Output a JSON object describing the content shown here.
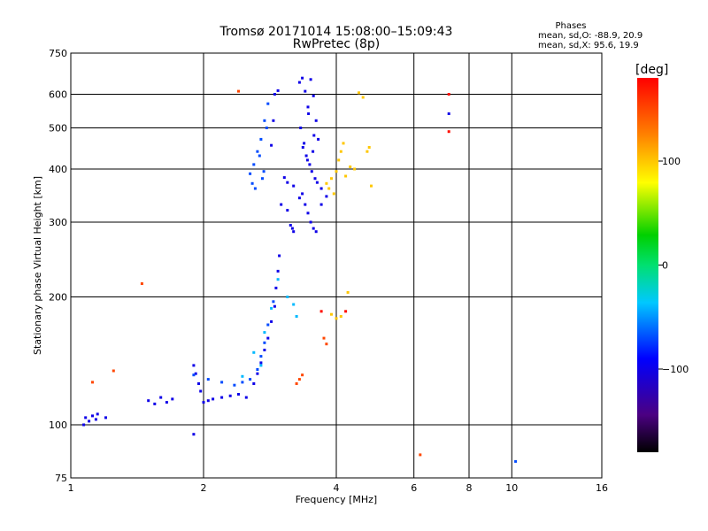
{
  "chart_data": {
    "type": "scatter",
    "title": "Tromsø 20171014 15:08:00–15:09:43",
    "subtitle": "RwPretec (8p)",
    "xlabel": "Frequency [MHz]",
    "ylabel": "Stationary phase Virtual Height [km]",
    "x_scale": "log",
    "y_scale": "log",
    "xlim": [
      1,
      16
    ],
    "ylim": [
      75,
      750
    ],
    "x_ticks": [
      1,
      2,
      4,
      6,
      8,
      10,
      16
    ],
    "x_tick_labels": [
      "1",
      "2",
      "4",
      "6",
      "8",
      "10",
      "16"
    ],
    "y_ticks": [
      75,
      100,
      200,
      300,
      400,
      500,
      600,
      750
    ],
    "y_tick_labels": [
      "75",
      "100",
      "200",
      "300",
      "400",
      "500",
      "600",
      "750"
    ],
    "grid": true,
    "stats": {
      "heading": "Phases",
      "line_o": "mean, sd,O: -88.9, 20.9",
      "line_x": "mean, sd,X:  95.6, 19.9"
    },
    "colorbar": {
      "label": "[deg]",
      "range": [
        -180,
        180
      ],
      "ticks": [
        100,
        0,
        -100
      ],
      "tick_labels": [
        "100",
        "0",
        "−100"
      ]
    },
    "series": [
      {
        "phase_deg": -100,
        "points": [
          [
            1.08,
            104
          ],
          [
            1.1,
            102
          ],
          [
            1.12,
            105
          ],
          [
            1.14,
            103
          ],
          [
            1.07,
            100
          ],
          [
            1.15,
            106
          ],
          [
            1.2,
            104
          ],
          [
            1.5,
            114
          ],
          [
            1.55,
            112
          ],
          [
            1.6,
            116
          ],
          [
            1.65,
            113
          ],
          [
            1.7,
            115
          ],
          [
            1.9,
            138
          ],
          [
            1.92,
            132
          ],
          [
            1.95,
            125
          ],
          [
            1.97,
            120
          ],
          [
            1.9,
            95
          ],
          [
            2.0,
            113
          ],
          [
            2.05,
            114
          ],
          [
            2.1,
            115
          ],
          [
            2.2,
            116
          ],
          [
            2.3,
            117
          ],
          [
            2.4,
            118
          ],
          [
            2.5,
            116
          ],
          [
            2.6,
            125
          ],
          [
            2.65,
            132
          ],
          [
            2.7,
            140
          ],
          [
            2.75,
            150
          ],
          [
            2.8,
            160
          ],
          [
            2.85,
            175
          ],
          [
            2.9,
            190
          ],
          [
            2.92,
            210
          ],
          [
            2.95,
            230
          ],
          [
            2.97,
            250
          ],
          [
            2.85,
            455
          ],
          [
            2.88,
            520
          ],
          [
            2.9,
            600
          ],
          [
            2.95,
            612
          ],
          [
            3.05,
            382
          ],
          [
            3.1,
            372
          ],
          [
            3.2,
            365
          ],
          [
            3.3,
            342
          ],
          [
            3.0,
            330
          ],
          [
            3.1,
            320
          ],
          [
            3.15,
            295
          ],
          [
            3.18,
            290
          ],
          [
            3.2,
            285
          ],
          [
            3.3,
            640
          ],
          [
            3.35,
            655
          ],
          [
            3.4,
            610
          ],
          [
            3.45,
            560
          ],
          [
            3.5,
            650
          ],
          [
            3.55,
            595
          ],
          [
            3.6,
            520
          ],
          [
            3.32,
            500
          ],
          [
            3.38,
            460
          ],
          [
            3.42,
            430
          ],
          [
            3.48,
            410
          ],
          [
            3.52,
            395
          ],
          [
            3.58,
            380
          ],
          [
            3.62,
            372
          ],
          [
            3.7,
            360
          ],
          [
            3.35,
            350
          ],
          [
            3.4,
            330
          ],
          [
            3.45,
            315
          ],
          [
            3.5,
            300
          ],
          [
            3.55,
            290
          ],
          [
            3.6,
            285
          ],
          [
            3.7,
            330
          ],
          [
            3.8,
            345
          ],
          [
            3.36,
            450
          ],
          [
            3.44,
            420
          ],
          [
            3.54,
            440
          ],
          [
            3.64,
            470
          ],
          [
            3.46,
            540
          ],
          [
            3.56,
            480
          ],
          [
            7.2,
            540
          ]
        ]
      },
      {
        "phase_deg": -70,
        "points": [
          [
            2.55,
            390
          ],
          [
            2.6,
            410
          ],
          [
            2.65,
            440
          ],
          [
            2.7,
            470
          ],
          [
            2.75,
            520
          ],
          [
            2.8,
            570
          ],
          [
            2.58,
            370
          ],
          [
            2.62,
            360
          ],
          [
            2.68,
            430
          ],
          [
            2.72,
            380
          ],
          [
            2.78,
            500
          ],
          [
            2.74,
            395
          ],
          [
            1.9,
            131
          ],
          [
            2.05,
            128
          ],
          [
            2.2,
            126
          ],
          [
            2.35,
            124
          ],
          [
            2.45,
            126
          ],
          [
            2.55,
            128
          ],
          [
            2.65,
            135
          ],
          [
            2.7,
            145
          ],
          [
            2.75,
            156
          ],
          [
            2.8,
            172
          ],
          [
            2.88,
            195
          ],
          [
            10.2,
            82
          ]
        ]
      },
      {
        "phase_deg": -40,
        "points": [
          [
            2.6,
            148
          ],
          [
            2.7,
            138
          ],
          [
            2.85,
            188
          ],
          [
            3.1,
            200
          ],
          [
            3.2,
            192
          ],
          [
            3.25,
            180
          ],
          [
            2.45,
            130
          ],
          [
            2.75,
            165
          ],
          [
            2.95,
            220
          ]
        ]
      },
      {
        "phase_deg": 100,
        "points": [
          [
            3.8,
            370
          ],
          [
            3.9,
            380
          ],
          [
            4.0,
            395
          ],
          [
            4.05,
            420
          ],
          [
            4.1,
            440
          ],
          [
            4.15,
            460
          ],
          [
            4.2,
            385
          ],
          [
            4.3,
            405
          ],
          [
            4.4,
            400
          ],
          [
            4.5,
            605
          ],
          [
            4.6,
            590
          ],
          [
            4.7,
            440
          ],
          [
            4.75,
            450
          ],
          [
            4.8,
            365
          ],
          [
            3.95,
            350
          ],
          [
            3.85,
            360
          ],
          [
            4.1,
            180
          ],
          [
            4.25,
            205
          ],
          [
            3.9,
            182
          ],
          [
            4.0,
            178
          ]
        ]
      },
      {
        "phase_deg": 150,
        "points": [
          [
            1.12,
            126
          ],
          [
            1.25,
            134
          ],
          [
            1.45,
            215
          ],
          [
            2.4,
            610
          ],
          [
            3.25,
            125
          ],
          [
            3.3,
            128
          ],
          [
            3.35,
            131
          ],
          [
            3.75,
            160
          ],
          [
            3.8,
            155
          ],
          [
            6.2,
            85
          ]
        ]
      },
      {
        "phase_deg": 175,
        "points": [
          [
            7.2,
            600
          ],
          [
            7.2,
            490
          ],
          [
            3.7,
            185
          ],
          [
            4.2,
            185
          ]
        ]
      }
    ]
  }
}
